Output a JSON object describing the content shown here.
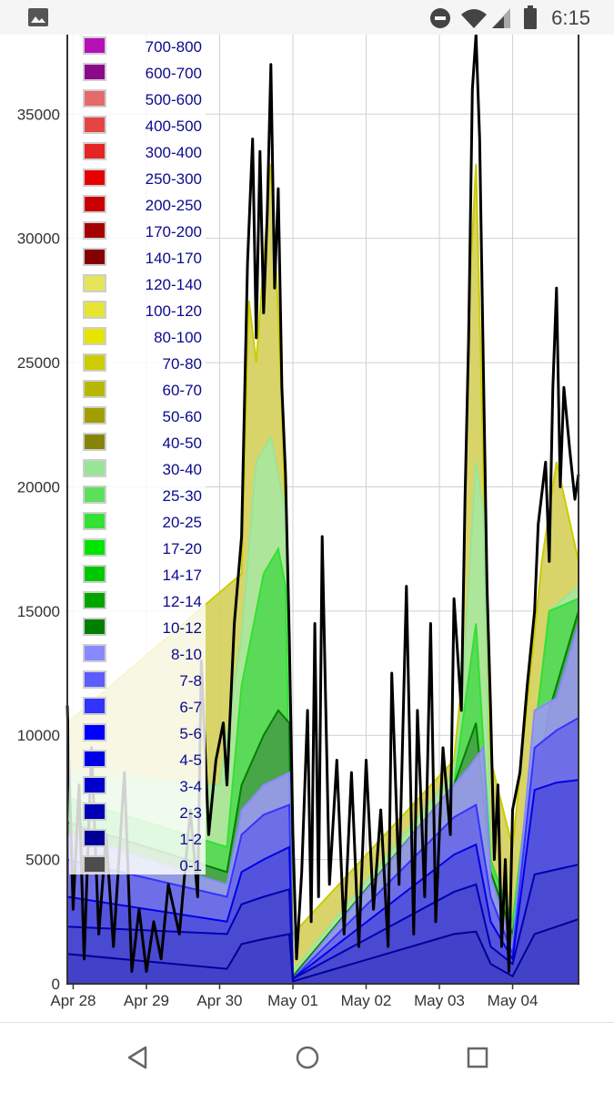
{
  "status_bar": {
    "time": "6:15",
    "icons": [
      "image-icon",
      "do-not-disturb-icon",
      "wifi-icon",
      "cellular-icon",
      "battery-icon"
    ]
  },
  "nav_bar": {
    "icons": [
      "back-icon",
      "home-icon",
      "recents-icon"
    ]
  },
  "chart_data": {
    "type": "area",
    "title": "",
    "xlabel": "",
    "ylabel": "",
    "stacked": true,
    "ylim": [
      0,
      38200
    ],
    "yticks": [
      0,
      5000,
      10000,
      15000,
      20000,
      25000,
      30000,
      35000
    ],
    "x_ticks": [
      "Apr 28",
      "Apr 29",
      "Apr 30",
      "May 01",
      "May 02",
      "May 03",
      "May 04"
    ],
    "xlim_days": [
      -0.08,
      6.9
    ],
    "grid": true,
    "legend_position": "top-left",
    "legend": [
      {
        "label": "700-800",
        "color": "#b512b5"
      },
      {
        "label": "600-700",
        "color": "#8a0a8a"
      },
      {
        "label": "500-600",
        "color": "#e56a6a"
      },
      {
        "label": "400-500",
        "color": "#e54444"
      },
      {
        "label": "300-400",
        "color": "#e52424"
      },
      {
        "label": "250-300",
        "color": "#e60000"
      },
      {
        "label": "200-250",
        "color": "#c80000"
      },
      {
        "label": "170-200",
        "color": "#a50000"
      },
      {
        "label": "140-170",
        "color": "#850000"
      },
      {
        "label": "120-140",
        "color": "#e5e55a"
      },
      {
        "label": "100-120",
        "color": "#e5e532"
      },
      {
        "label": "80-100",
        "color": "#e5e500"
      },
      {
        "label": "70-80",
        "color": "#cccc00"
      },
      {
        "label": "60-70",
        "color": "#b8b800"
      },
      {
        "label": "50-60",
        "color": "#a09e00"
      },
      {
        "label": "40-50",
        "color": "#86850a"
      },
      {
        "label": "30-40",
        "color": "#98e598"
      },
      {
        "label": "25-30",
        "color": "#5ce05c"
      },
      {
        "label": "20-25",
        "color": "#33e033"
      },
      {
        "label": "17-20",
        "color": "#00e500"
      },
      {
        "label": "14-17",
        "color": "#00c800"
      },
      {
        "label": "12-14",
        "color": "#00a500"
      },
      {
        "label": "10-12",
        "color": "#008000"
      },
      {
        "label": "8-10",
        "color": "#8888ff"
      },
      {
        "label": "7-8",
        "color": "#5c5cff"
      },
      {
        "label": "6-7",
        "color": "#3333ff"
      },
      {
        "label": "5-6",
        "color": "#0000ff"
      },
      {
        "label": "4-5",
        "color": "#0000e6"
      },
      {
        "label": "3-4",
        "color": "#0000cc"
      },
      {
        "label": "2-3",
        "color": "#0000b3"
      },
      {
        "label": "1-2",
        "color": "#000099"
      },
      {
        "label": "0-1",
        "color": "#4d4d4d"
      }
    ],
    "series": [
      {
        "key": "total",
        "color": "#000000",
        "style": "line",
        "points": [
          [
            -0.08,
            11200
          ],
          [
            0.0,
            3000
          ],
          [
            0.08,
            8000
          ],
          [
            0.15,
            1000
          ],
          [
            0.25,
            9500
          ],
          [
            0.35,
            2000
          ],
          [
            0.45,
            6000
          ],
          [
            0.55,
            1500
          ],
          [
            0.7,
            8500
          ],
          [
            0.8,
            500
          ],
          [
            0.9,
            3000
          ],
          [
            1.0,
            500
          ],
          [
            1.1,
            2500
          ],
          [
            1.2,
            1000
          ],
          [
            1.3,
            4000
          ],
          [
            1.45,
            2000
          ],
          [
            1.6,
            7000
          ],
          [
            1.7,
            3500
          ],
          [
            1.75,
            13000
          ],
          [
            1.85,
            6000
          ],
          [
            1.95,
            9000
          ],
          [
            2.05,
            10500
          ],
          [
            2.1,
            8000
          ],
          [
            2.2,
            14500
          ],
          [
            2.3,
            18000
          ],
          [
            2.38,
            29000
          ],
          [
            2.45,
            34000
          ],
          [
            2.5,
            26000
          ],
          [
            2.55,
            33500
          ],
          [
            2.6,
            27000
          ],
          [
            2.65,
            31000
          ],
          [
            2.7,
            37000
          ],
          [
            2.75,
            28000
          ],
          [
            2.8,
            32000
          ],
          [
            2.85,
            24000
          ],
          [
            2.9,
            20500
          ],
          [
            2.95,
            14000
          ],
          [
            3.0,
            6000
          ],
          [
            3.05,
            1000
          ],
          [
            3.12,
            4500
          ],
          [
            3.2,
            11000
          ],
          [
            3.25,
            2500
          ],
          [
            3.3,
            14500
          ],
          [
            3.35,
            3500
          ],
          [
            3.4,
            18000
          ],
          [
            3.5,
            4000
          ],
          [
            3.6,
            9000
          ],
          [
            3.7,
            2000
          ],
          [
            3.8,
            8500
          ],
          [
            3.9,
            1500
          ],
          [
            4.0,
            9000
          ],
          [
            4.1,
            3000
          ],
          [
            4.2,
            7000
          ],
          [
            4.3,
            1500
          ],
          [
            4.35,
            12500
          ],
          [
            4.45,
            4000
          ],
          [
            4.55,
            16000
          ],
          [
            4.65,
            2000
          ],
          [
            4.7,
            11000
          ],
          [
            4.8,
            3500
          ],
          [
            4.88,
            14500
          ],
          [
            4.95,
            2500
          ],
          [
            5.05,
            9500
          ],
          [
            5.15,
            6000
          ],
          [
            5.2,
            15500
          ],
          [
            5.3,
            11000
          ],
          [
            5.35,
            19500
          ],
          [
            5.4,
            26000
          ],
          [
            5.45,
            36000
          ],
          [
            5.5,
            38200
          ],
          [
            5.55,
            34000
          ],
          [
            5.6,
            25000
          ],
          [
            5.65,
            16000
          ],
          [
            5.7,
            11000
          ],
          [
            5.75,
            5000
          ],
          [
            5.8,
            8000
          ],
          [
            5.85,
            1500
          ],
          [
            5.9,
            5000
          ],
          [
            5.95,
            500
          ],
          [
            6.0,
            7000
          ],
          [
            6.1,
            8500
          ],
          [
            6.2,
            12000
          ],
          [
            6.3,
            15000
          ],
          [
            6.35,
            18500
          ],
          [
            6.45,
            21000
          ],
          [
            6.5,
            17000
          ],
          [
            6.55,
            24000
          ],
          [
            6.6,
            28000
          ],
          [
            6.65,
            20000
          ],
          [
            6.7,
            24000
          ],
          [
            6.78,
            21500
          ],
          [
            6.85,
            19500
          ],
          [
            6.9,
            20500
          ]
        ]
      },
      {
        "key": "yellow_upper",
        "color": "#cccc00",
        "points": [
          [
            -0.08,
            10500
          ],
          [
            2.3,
            16500
          ],
          [
            2.4,
            27500
          ],
          [
            2.5,
            25000
          ],
          [
            2.6,
            29000
          ],
          [
            2.7,
            33000
          ],
          [
            2.8,
            27000
          ],
          [
            2.9,
            19000
          ],
          [
            3.0,
            2000
          ],
          [
            5.2,
            9000
          ],
          [
            5.3,
            12000
          ],
          [
            5.4,
            27000
          ],
          [
            5.5,
            33000
          ],
          [
            5.6,
            21000
          ],
          [
            5.7,
            9000
          ],
          [
            6.0,
            5500
          ],
          [
            6.4,
            17000
          ],
          [
            6.6,
            21000
          ],
          [
            6.9,
            17000
          ]
        ]
      },
      {
        "key": "green_30_40",
        "color": "#98e598",
        "points": [
          [
            -0.08,
            8500
          ],
          [
            2.0,
            8000
          ],
          [
            2.3,
            14000
          ],
          [
            2.5,
            21000
          ],
          [
            2.7,
            22000
          ],
          [
            2.9,
            19000
          ],
          [
            3.0,
            500
          ],
          [
            5.2,
            8500
          ],
          [
            5.3,
            11000
          ],
          [
            5.4,
            16000
          ],
          [
            5.5,
            21000
          ],
          [
            5.6,
            19000
          ],
          [
            5.7,
            5000
          ],
          [
            6.0,
            2500
          ],
          [
            6.5,
            15000
          ],
          [
            6.9,
            16000
          ]
        ]
      },
      {
        "key": "green_17_20",
        "color": "#33e033",
        "points": [
          [
            -0.08,
            7500
          ],
          [
            2.1,
            5500
          ],
          [
            2.3,
            12000
          ],
          [
            2.6,
            16500
          ],
          [
            2.8,
            17500
          ],
          [
            2.9,
            16000
          ],
          [
            3.0,
            300
          ],
          [
            5.2,
            8000
          ],
          [
            5.5,
            14500
          ],
          [
            5.7,
            5000
          ],
          [
            6.0,
            2500
          ],
          [
            6.5,
            15000
          ],
          [
            6.9,
            15500
          ]
        ]
      },
      {
        "key": "green_10_12",
        "color": "#008000",
        "points": [
          [
            -0.08,
            6500
          ],
          [
            2.1,
            4500
          ],
          [
            2.3,
            8000
          ],
          [
            2.6,
            10000
          ],
          [
            2.8,
            11000
          ],
          [
            2.95,
            10500
          ],
          [
            3.0,
            300
          ],
          [
            5.2,
            8000
          ],
          [
            5.5,
            10500
          ],
          [
            5.7,
            4500
          ],
          [
            6.0,
            2000
          ],
          [
            6.5,
            11000
          ],
          [
            6.9,
            15000
          ]
        ]
      },
      {
        "key": "blue_8_10",
        "color": "#8888ff",
        "points": [
          [
            -0.08,
            6000
          ],
          [
            2.1,
            4000
          ],
          [
            2.3,
            7000
          ],
          [
            2.6,
            8000
          ],
          [
            2.95,
            8500
          ],
          [
            3.0,
            200
          ],
          [
            5.2,
            8000
          ],
          [
            5.4,
            8700
          ],
          [
            5.6,
            9500
          ],
          [
            5.7,
            4300
          ],
          [
            6.0,
            1500
          ],
          [
            6.3,
            11000
          ],
          [
            6.6,
            11500
          ],
          [
            6.9,
            14500
          ]
        ]
      },
      {
        "key": "blue_6_7",
        "color": "#3333ff",
        "points": [
          [
            -0.08,
            5000
          ],
          [
            2.1,
            3500
          ],
          [
            2.3,
            6000
          ],
          [
            2.6,
            6800
          ],
          [
            2.95,
            7200
          ],
          [
            3.0,
            200
          ],
          [
            5.2,
            6700
          ],
          [
            5.5,
            7200
          ],
          [
            5.7,
            3500
          ],
          [
            6.0,
            1200
          ],
          [
            6.3,
            9500
          ],
          [
            6.6,
            10200
          ],
          [
            6.9,
            10700
          ]
        ]
      },
      {
        "key": "blue_4_5",
        "color": "#0000e6",
        "points": [
          [
            -0.08,
            3500
          ],
          [
            2.1,
            2500
          ],
          [
            2.3,
            4500
          ],
          [
            2.6,
            5000
          ],
          [
            2.95,
            5500
          ],
          [
            3.0,
            200
          ],
          [
            5.2,
            5200
          ],
          [
            5.5,
            5600
          ],
          [
            5.7,
            2500
          ],
          [
            6.0,
            1000
          ],
          [
            6.3,
            7800
          ],
          [
            6.6,
            8100
          ],
          [
            6.9,
            8200
          ]
        ]
      },
      {
        "key": "blue_2_3",
        "color": "#0000b3",
        "points": [
          [
            -0.08,
            2300
          ],
          [
            2.1,
            2000
          ],
          [
            2.3,
            3200
          ],
          [
            2.6,
            3500
          ],
          [
            2.95,
            3800
          ],
          [
            3.0,
            200
          ],
          [
            5.2,
            3700
          ],
          [
            5.5,
            4000
          ],
          [
            5.7,
            1500
          ],
          [
            6.0,
            800
          ],
          [
            6.3,
            4400
          ],
          [
            6.6,
            4600
          ],
          [
            6.9,
            4800
          ]
        ]
      },
      {
        "key": "blue_0_1",
        "color": "#000099",
        "points": [
          [
            -0.08,
            1200
          ],
          [
            2.1,
            600
          ],
          [
            2.3,
            1600
          ],
          [
            2.6,
            1800
          ],
          [
            2.95,
            2000
          ],
          [
            3.0,
            100
          ],
          [
            5.2,
            2000
          ],
          [
            5.5,
            2100
          ],
          [
            5.7,
            800
          ],
          [
            6.0,
            300
          ],
          [
            6.3,
            2000
          ],
          [
            6.6,
            2300
          ],
          [
            6.9,
            2600
          ]
        ]
      }
    ]
  }
}
